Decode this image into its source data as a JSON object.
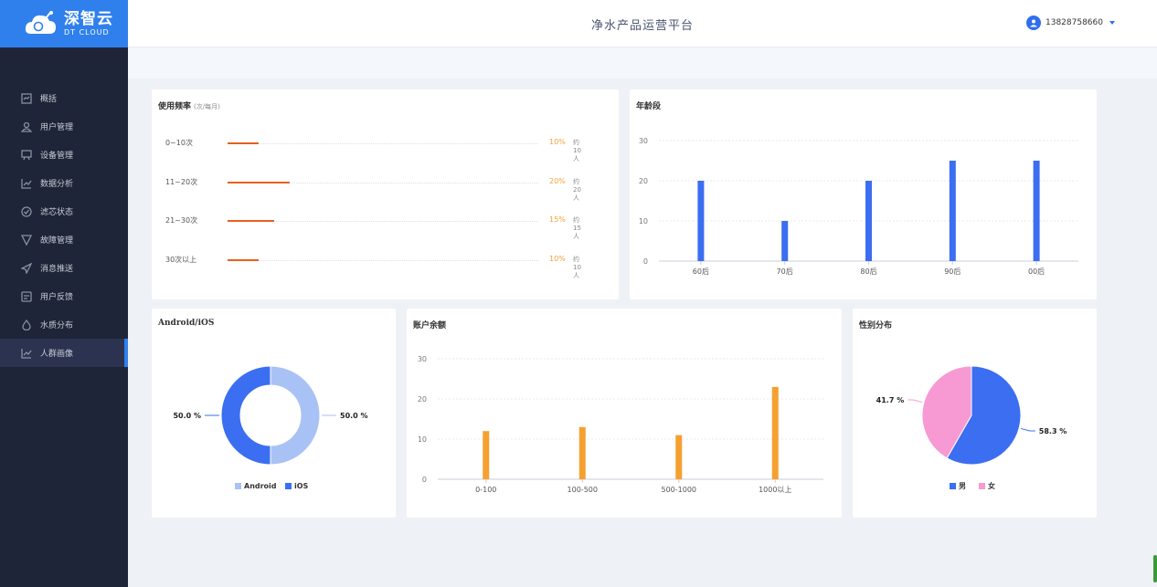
{
  "header": {
    "logo_cn": "深智云",
    "logo_en": "DT CLOUD",
    "title": "净水产品运营平台",
    "user": "13828758660"
  },
  "sidebar": {
    "items": [
      {
        "label": "概括",
        "icon": "overview-icon",
        "active": false
      },
      {
        "label": "用户管理",
        "icon": "user-icon",
        "active": false
      },
      {
        "label": "设备管理",
        "icon": "device-icon",
        "active": false
      },
      {
        "label": "数据分析",
        "icon": "chart-icon",
        "active": false
      },
      {
        "label": "滤芯状态",
        "icon": "check-circle-icon",
        "active": false
      },
      {
        "label": "故障管理",
        "icon": "filter-icon",
        "active": false
      },
      {
        "label": "消息推送",
        "icon": "send-icon",
        "active": false
      },
      {
        "label": "用户反馈",
        "icon": "feedback-icon",
        "active": false
      },
      {
        "label": "水质分布",
        "icon": "drop-icon",
        "active": false
      },
      {
        "label": "人群画像",
        "icon": "chart-icon",
        "active": true
      }
    ]
  },
  "usage": {
    "title": "使用频率",
    "subtitle": "(次/每月)",
    "rows": [
      {
        "label": "0~10次",
        "pct_text": "10%",
        "count_text": "约10人",
        "fraction": 0.1
      },
      {
        "label": "11~20次",
        "pct_text": "20%",
        "count_text": "约20人",
        "fraction": 0.2
      },
      {
        "label": "21~30次",
        "pct_text": "15%",
        "count_text": "约15人",
        "fraction": 0.15
      },
      {
        "label": "30次以上",
        "pct_text": "10%",
        "count_text": "约10人",
        "fraction": 0.1
      }
    ]
  },
  "age": {
    "title": "年龄段"
  },
  "platform": {
    "title": "Android/iOS"
  },
  "balance": {
    "title": "账户余额"
  },
  "gender": {
    "title": "性别分布"
  },
  "chart_data": [
    {
      "type": "bar",
      "title": "年龄段",
      "categories": [
        "60后",
        "70后",
        "80后",
        "90后",
        "00后"
      ],
      "values": [
        20,
        10,
        20,
        25,
        25
      ],
      "ylim": [
        0,
        30
      ],
      "yticks": [
        0,
        10,
        20,
        30
      ],
      "color": "#3b6ef0"
    },
    {
      "type": "pie",
      "title": "Android/iOS",
      "donut": true,
      "labels": [
        "Android",
        "iOS"
      ],
      "values": [
        50.0,
        50.0
      ],
      "value_labels": [
        "50.0 %",
        "50.0 %"
      ],
      "colors": [
        "#a9c2f5",
        "#3b6ef0"
      ],
      "legend": "bottom"
    },
    {
      "type": "bar",
      "title": "账户余额",
      "categories": [
        "0-100",
        "100-500",
        "500-1000",
        "1000以上"
      ],
      "values": [
        12,
        13,
        11,
        23
      ],
      "ylim": [
        0,
        30
      ],
      "yticks": [
        0,
        10,
        20,
        30
      ],
      "color": "#f5a031"
    },
    {
      "type": "pie",
      "title": "性别分布",
      "labels": [
        "男",
        "女"
      ],
      "values": [
        58.3,
        41.7
      ],
      "value_labels": [
        "58.3 %",
        "41.7 %"
      ],
      "colors": [
        "#3b6ef0",
        "#f79ad3"
      ],
      "legend": "bottom"
    }
  ]
}
